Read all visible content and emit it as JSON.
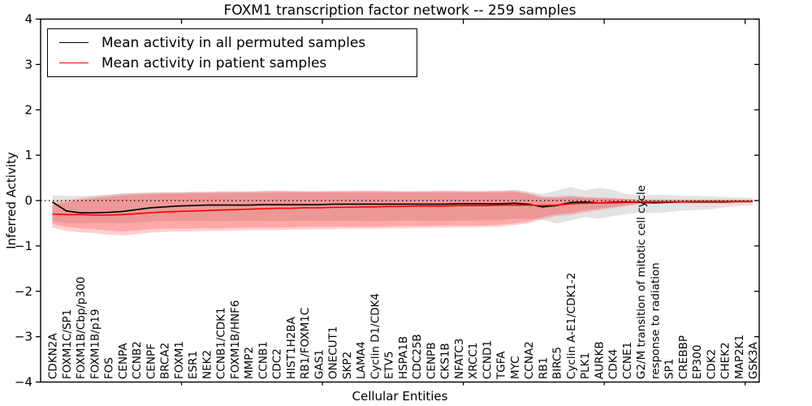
{
  "title": "FOXM1 transcription factor network -- 259 samples",
  "axes": {
    "xlabel": "Cellular Entities",
    "ylabel": "Inferred Activity",
    "ylim": [
      -4,
      4
    ],
    "ytick_values": [
      4,
      3,
      2,
      1,
      0,
      -1,
      -2,
      -3,
      -4
    ],
    "ytick_labels": [
      "4",
      "3",
      "2",
      "1",
      "0",
      "−1",
      "−2",
      "−3",
      "−4"
    ],
    "xtick_positions": [
      10,
      20,
      30,
      40,
      50
    ]
  },
  "legend": {
    "entries": [
      {
        "label": "Mean activity in all permuted samples",
        "color": "#000000"
      },
      {
        "label": "Mean activity in patient samples",
        "color": "#ff0000"
      }
    ]
  },
  "colors": {
    "frame": "#000000",
    "background": "#ffffff",
    "permuted_line": "#000000",
    "patient_line": "#ff0000",
    "permuted_band": "rgba(90,90,90,0.17)",
    "patient_band_outer": "rgba(255,40,40,0.22)",
    "patient_band_inner": "rgba(255,40,40,0.24)"
  },
  "chart_data": {
    "type": "line",
    "title": "FOXM1 transcription factor network -- 259 samples",
    "xlabel": "Cellular Entities",
    "ylabel": "Inferred Activity",
    "ylim": [
      -4,
      4
    ],
    "grid": false,
    "legend_position": "upper left",
    "reference_line": {
      "y": 0,
      "style": "dotted",
      "color": "#000000"
    },
    "categories": [
      "CDKN2A",
      "FOXM1C/SP1",
      "FOXM1B/Cbp/p300",
      "FOXM1B/p19",
      "FOS",
      "CENPA",
      "CCNB2",
      "CENPF",
      "BRCA2",
      "FOXM1",
      "ESR1",
      "NEK2",
      "CCNB1/CDK1",
      "FOXM1B/HNF6",
      "MMP2",
      "CCNB1",
      "CDC2",
      "HIST1H2BA",
      "RB1/FOXM1C",
      "GAS1",
      "ONECUT1",
      "SKP2",
      "LAMA4",
      "Cyclin D1/CDK4",
      "ETV5",
      "HSPA1B",
      "CDC25B",
      "CENPB",
      "CKS1B",
      "NFATC3",
      "XRCC1",
      "CCND1",
      "TGFA",
      "MYC",
      "CCNA2",
      "RB1",
      "BIRC5",
      "Cyclin A-E1/CDK1-2",
      "PLK1",
      "AURKB",
      "CDK4",
      "CCNE1",
      "G2/M transition of mitotic cell cycle",
      "response to radiation",
      "SP1",
      "CREBBP",
      "EP300",
      "CDK2",
      "CHEK2",
      "MAP2K1",
      "GSK3A"
    ],
    "series": [
      {
        "name": "Mean activity in all permuted samples",
        "color": "#000000",
        "values": [
          -0.03,
          -0.23,
          -0.27,
          -0.27,
          -0.26,
          -0.24,
          -0.2,
          -0.16,
          -0.14,
          -0.12,
          -0.11,
          -0.1,
          -0.1,
          -0.1,
          -0.1,
          -0.09,
          -0.09,
          -0.09,
          -0.09,
          -0.09,
          -0.08,
          -0.08,
          -0.08,
          -0.08,
          -0.08,
          -0.08,
          -0.08,
          -0.08,
          -0.08,
          -0.07,
          -0.07,
          -0.07,
          -0.07,
          -0.06,
          -0.08,
          -0.14,
          -0.11,
          -0.04,
          -0.03,
          -0.05,
          -0.04,
          -0.03,
          -0.04,
          -0.05,
          -0.04,
          -0.03,
          -0.03,
          -0.03,
          -0.03,
          -0.02,
          -0.02
        ]
      },
      {
        "name": "Mean activity in patient samples",
        "color": "#ff0000",
        "values": [
          -0.3,
          -0.31,
          -0.31,
          -0.32,
          -0.32,
          -0.31,
          -0.29,
          -0.27,
          -0.25,
          -0.24,
          -0.23,
          -0.22,
          -0.21,
          -0.2,
          -0.19,
          -0.18,
          -0.17,
          -0.17,
          -0.16,
          -0.16,
          -0.15,
          -0.15,
          -0.14,
          -0.14,
          -0.13,
          -0.13,
          -0.12,
          -0.12,
          -0.12,
          -0.11,
          -0.11,
          -0.11,
          -0.1,
          -0.1,
          -0.1,
          -0.11,
          -0.1,
          -0.07,
          -0.06,
          -0.05,
          -0.05,
          -0.04,
          -0.03,
          -0.03,
          -0.03,
          -0.03,
          -0.02,
          -0.02,
          -0.02,
          -0.02,
          -0.02
        ]
      }
    ],
    "bands": [
      {
        "name": "permuted samples range",
        "fill": "rgba(90,90,90,0.17)",
        "upper": [
          0.12,
          0.1,
          0.1,
          0.11,
          0.13,
          0.16,
          0.17,
          0.18,
          0.18,
          0.18,
          0.19,
          0.19,
          0.2,
          0.2,
          0.2,
          0.21,
          0.22,
          0.21,
          0.2,
          0.2,
          0.21,
          0.21,
          0.22,
          0.22,
          0.21,
          0.2,
          0.2,
          0.21,
          0.22,
          0.21,
          0.2,
          0.21,
          0.22,
          0.24,
          0.2,
          0.14,
          0.22,
          0.3,
          0.22,
          0.28,
          0.24,
          0.14,
          0.12,
          0.13,
          0.12,
          0.1,
          0.1,
          0.09,
          0.08,
          0.07,
          0.06
        ],
        "lower": [
          -0.45,
          -0.5,
          -0.5,
          -0.49,
          -0.49,
          -0.5,
          -0.48,
          -0.46,
          -0.46,
          -0.45,
          -0.45,
          -0.45,
          -0.46,
          -0.45,
          -0.45,
          -0.45,
          -0.46,
          -0.45,
          -0.44,
          -0.45,
          -0.45,
          -0.44,
          -0.45,
          -0.46,
          -0.45,
          -0.44,
          -0.44,
          -0.45,
          -0.45,
          -0.44,
          -0.44,
          -0.43,
          -0.43,
          -0.4,
          -0.4,
          -0.43,
          -0.5,
          -0.44,
          -0.36,
          -0.4,
          -0.34,
          -0.3,
          -0.26,
          -0.28,
          -0.25,
          -0.22,
          -0.21,
          -0.19,
          -0.15,
          -0.12,
          -0.1
        ]
      },
      {
        "name": "patient samples range (outer)",
        "fill": "rgba(255,40,40,0.22)",
        "upper": [
          -0.02,
          0.01,
          0.05,
          0.09,
          0.12,
          0.15,
          0.16,
          0.17,
          0.18,
          0.18,
          0.19,
          0.19,
          0.2,
          0.2,
          0.2,
          0.21,
          0.21,
          0.21,
          0.21,
          0.21,
          0.21,
          0.21,
          0.21,
          0.21,
          0.21,
          0.21,
          0.21,
          0.21,
          0.21,
          0.21,
          0.21,
          0.21,
          0.21,
          0.22,
          0.17,
          0.09,
          0.09,
          0.11,
          0.08,
          0.07,
          0.06,
          0.04,
          0.02,
          0.02,
          0.02,
          0.02,
          0.02,
          0.02,
          0.02,
          0.02,
          0.02
        ],
        "lower": [
          -0.6,
          -0.67,
          -0.7,
          -0.72,
          -0.75,
          -0.77,
          -0.74,
          -0.71,
          -0.69,
          -0.68,
          -0.68,
          -0.67,
          -0.67,
          -0.66,
          -0.65,
          -0.65,
          -0.65,
          -0.64,
          -0.64,
          -0.63,
          -0.63,
          -0.62,
          -0.62,
          -0.62,
          -0.61,
          -0.61,
          -0.6,
          -0.6,
          -0.6,
          -0.59,
          -0.59,
          -0.58,
          -0.57,
          -0.54,
          -0.5,
          -0.41,
          -0.34,
          -0.32,
          -0.26,
          -0.21,
          -0.17,
          -0.12,
          -0.08,
          -0.07,
          -0.06,
          -0.06,
          -0.06,
          -0.06,
          -0.06,
          -0.06,
          -0.05
        ]
      },
      {
        "name": "patient samples range (inner)",
        "fill": "rgba(255,40,40,0.24)",
        "upper": [
          -0.08,
          -0.04,
          0.01,
          0.05,
          0.08,
          0.11,
          0.13,
          0.14,
          0.15,
          0.15,
          0.16,
          0.16,
          0.16,
          0.17,
          0.17,
          0.17,
          0.18,
          0.18,
          0.18,
          0.18,
          0.18,
          0.18,
          0.18,
          0.18,
          0.18,
          0.18,
          0.18,
          0.18,
          0.18,
          0.18,
          0.18,
          0.18,
          0.18,
          0.19,
          0.14,
          0.06,
          0.06,
          0.08,
          0.06,
          0.05,
          0.04,
          0.03,
          0.01,
          0.01,
          0.01,
          0.01,
          0.01,
          0.01,
          0.01,
          0.01,
          0.01
        ],
        "lower": [
          -0.52,
          -0.58,
          -0.61,
          -0.63,
          -0.66,
          -0.68,
          -0.66,
          -0.63,
          -0.62,
          -0.62,
          -0.62,
          -0.61,
          -0.61,
          -0.6,
          -0.6,
          -0.6,
          -0.6,
          -0.59,
          -0.58,
          -0.58,
          -0.58,
          -0.58,
          -0.58,
          -0.58,
          -0.57,
          -0.56,
          -0.56,
          -0.56,
          -0.55,
          -0.55,
          -0.55,
          -0.55,
          -0.53,
          -0.5,
          -0.46,
          -0.36,
          -0.3,
          -0.28,
          -0.22,
          -0.18,
          -0.14,
          -0.1,
          -0.06,
          -0.06,
          -0.05,
          -0.05,
          -0.05,
          -0.05,
          -0.05,
          -0.05,
          -0.04
        ]
      }
    ]
  }
}
